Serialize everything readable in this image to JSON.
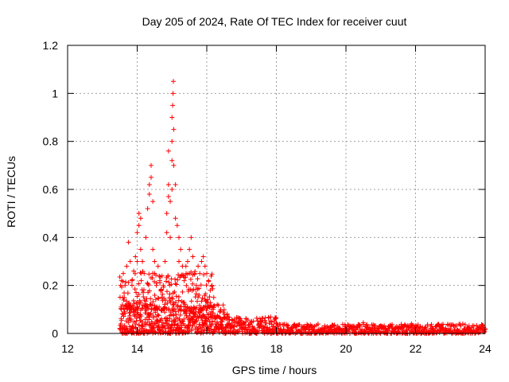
{
  "chart_data": {
    "type": "scatter",
    "title": "Day 205 of 2024, Rate Of TEC Index for receiver cuut",
    "xlabel": "GPS time / hours",
    "ylabel": "ROTI / TECUs",
    "xlim": [
      12,
      24
    ],
    "ylim": [
      0,
      1.2
    ],
    "x_ticks": [
      12,
      14,
      16,
      18,
      20,
      22,
      24
    ],
    "x_tick_labels": [
      "12",
      "14",
      "16",
      "18",
      "20",
      "22",
      "24"
    ],
    "y_ticks": [
      0,
      0.2,
      0.4,
      0.6,
      0.8,
      1.0,
      1.2
    ],
    "y_tick_labels": [
      "0",
      "0.2",
      "0.4",
      "0.6",
      "0.8",
      "1",
      "1.2"
    ],
    "grid": true,
    "marker": "plus",
    "marker_color": "#ff0000",
    "series": [
      {
        "points": [
          [
            13.55,
            0.22
          ],
          [
            13.6,
            0.25
          ],
          [
            13.65,
            0.2
          ],
          [
            13.7,
            0.28
          ],
          [
            13.75,
            0.38
          ],
          [
            13.8,
            0.3
          ],
          [
            13.85,
            0.22
          ],
          [
            13.9,
            0.26
          ],
          [
            13.95,
            0.32
          ],
          [
            14.0,
            0.3
          ],
          [
            14.0,
            0.42
          ],
          [
            14.05,
            0.45
          ],
          [
            14.05,
            0.5
          ],
          [
            14.1,
            0.48
          ],
          [
            14.1,
            0.35
          ],
          [
            14.15,
            0.3
          ],
          [
            14.2,
            0.25
          ],
          [
            14.25,
            0.4
          ],
          [
            14.3,
            0.52
          ],
          [
            14.35,
            0.58
          ],
          [
            14.35,
            0.62
          ],
          [
            14.4,
            0.7
          ],
          [
            14.4,
            0.65
          ],
          [
            14.45,
            0.55
          ],
          [
            14.45,
            0.35
          ],
          [
            14.5,
            0.3
          ],
          [
            14.5,
            0.25
          ],
          [
            14.55,
            0.2
          ],
          [
            14.6,
            0.28
          ],
          [
            14.65,
            0.22
          ],
          [
            14.7,
            0.15
          ],
          [
            14.75,
            0.2
          ],
          [
            14.8,
            0.3
          ],
          [
            14.85,
            0.42
          ],
          [
            14.85,
            0.5
          ],
          [
            14.9,
            0.57
          ],
          [
            14.9,
            0.62
          ],
          [
            14.9,
            0.76
          ],
          [
            14.95,
            0.55
          ],
          [
            14.95,
            0.4
          ],
          [
            15.0,
            0.6
          ],
          [
            15.0,
            0.72
          ],
          [
            15.0,
            0.8
          ],
          [
            15.0,
            0.9
          ],
          [
            15.02,
            0.95
          ],
          [
            15.03,
            1.0
          ],
          [
            15.04,
            1.05
          ],
          [
            15.05,
            0.85
          ],
          [
            15.05,
            0.7
          ],
          [
            15.1,
            0.62
          ],
          [
            15.1,
            0.48
          ],
          [
            15.15,
            0.45
          ],
          [
            15.2,
            0.4
          ],
          [
            15.2,
            0.3
          ],
          [
            15.25,
            0.35
          ],
          [
            15.3,
            0.28
          ],
          [
            15.35,
            0.22
          ],
          [
            15.4,
            0.28
          ],
          [
            15.45,
            0.3
          ],
          [
            15.5,
            0.35
          ],
          [
            15.5,
            0.25
          ],
          [
            15.55,
            0.4
          ],
          [
            15.6,
            0.32
          ],
          [
            15.65,
            0.25
          ],
          [
            15.7,
            0.2
          ],
          [
            15.75,
            0.28
          ],
          [
            15.8,
            0.25
          ],
          [
            15.85,
            0.3
          ],
          [
            15.9,
            0.32
          ],
          [
            15.95,
            0.28
          ],
          [
            16.0,
            0.25
          ],
          [
            16.05,
            0.22
          ],
          [
            16.1,
            0.18
          ],
          [
            16.15,
            0.2
          ],
          [
            16.2,
            0.15
          ],
          [
            16.3,
            0.12
          ],
          [
            16.4,
            0.1
          ],
          [
            16.5,
            0.08
          ],
          [
            16.6,
            0.07
          ],
          [
            16.8,
            0.06
          ],
          [
            17.0,
            0.05
          ],
          [
            17.5,
            0.04
          ],
          [
            18.0,
            0.04
          ],
          [
            18.5,
            0.03
          ],
          [
            19.0,
            0.03
          ],
          [
            19.5,
            0.025
          ],
          [
            20.0,
            0.03
          ],
          [
            20.5,
            0.045
          ],
          [
            21.0,
            0.03
          ],
          [
            21.5,
            0.025
          ],
          [
            22.0,
            0.025
          ],
          [
            22.5,
            0.02
          ],
          [
            23.0,
            0.02
          ],
          [
            23.5,
            0.02
          ],
          [
            24.0,
            0.02
          ]
        ]
      }
    ],
    "generator": {
      "seed": 205,
      "bands": [
        {
          "x0": 13.5,
          "x1": 16.6,
          "step": 0.006,
          "ymin": 0.0,
          "ymax": 0.12
        },
        {
          "x0": 13.5,
          "x1": 16.2,
          "step": 0.012,
          "ymin": 0.1,
          "ymax": 0.26
        },
        {
          "x0": 16.6,
          "x1": 18.0,
          "step": 0.008,
          "ymin": 0.0,
          "ymax": 0.07
        },
        {
          "x0": 18.0,
          "x1": 24.0,
          "step": 0.01,
          "ymin": 0.0,
          "ymax": 0.04
        }
      ]
    }
  }
}
